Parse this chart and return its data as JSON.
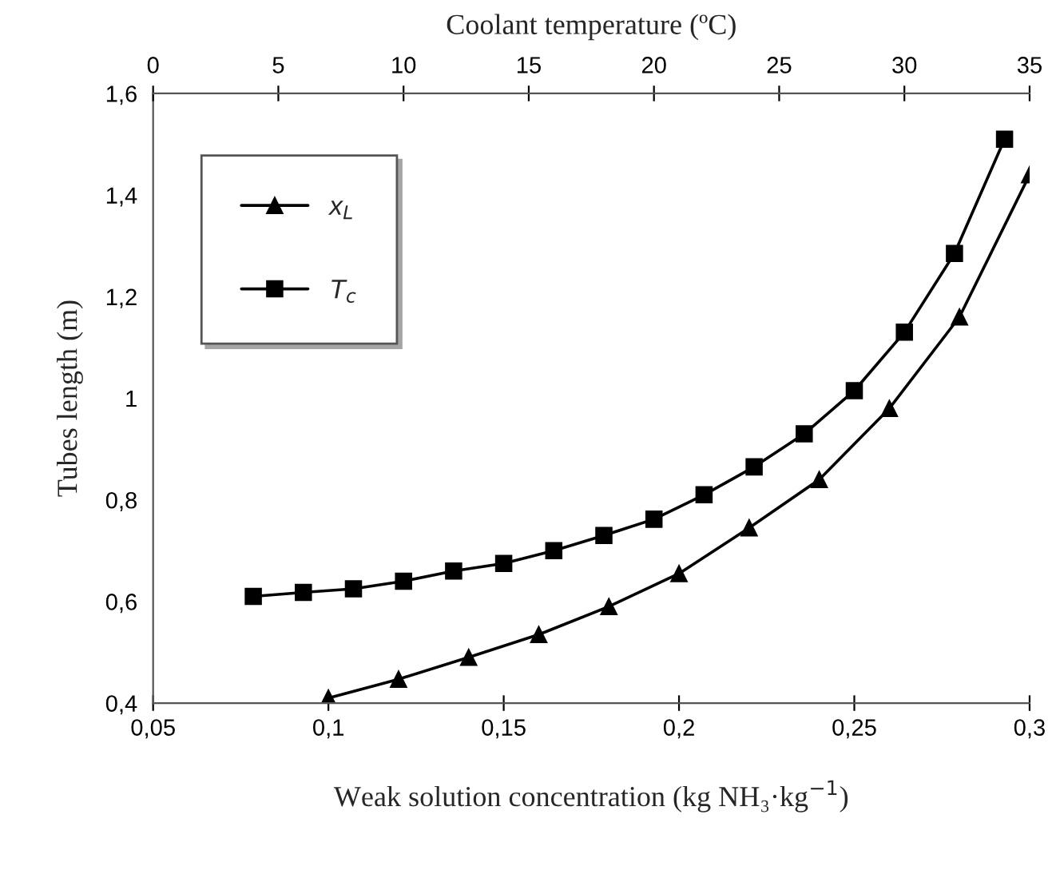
{
  "chart_data": {
    "type": "line",
    "xlabel": "Weak solution concentration (kg NH₃·kg$^{−1}$)",
    "x2label": "Coolant temperature (ºC)",
    "ylabel": "Tubes length (m)",
    "xlim": [
      0.05,
      0.3
    ],
    "xticks": [
      {
        "value": 0.05,
        "label": "0,05"
      },
      {
        "value": 0.1,
        "label": "0,1"
      },
      {
        "value": 0.15,
        "label": "0,15"
      },
      {
        "value": 0.2,
        "label": "0,2"
      },
      {
        "value": 0.25,
        "label": "0,25"
      },
      {
        "value": 0.3,
        "label": "0,3"
      }
    ],
    "x2lim": [
      0,
      35
    ],
    "x2ticks": [
      0,
      5,
      10,
      15,
      20,
      25,
      30,
      35
    ],
    "ylim": [
      0.4,
      1.6
    ],
    "yticks": [
      {
        "value": 0.4,
        "label": "0,4"
      },
      {
        "value": 0.6,
        "label": "0,6"
      },
      {
        "value": 0.8,
        "label": "0,8"
      },
      {
        "value": 1,
        "label": "1"
      },
      {
        "value": 1.2,
        "label": "1,2"
      },
      {
        "value": 1.4,
        "label": "1,4"
      },
      {
        "value": 1.6,
        "label": "1,6"
      }
    ],
    "grid": false,
    "legend": "top left",
    "line_style": "solid",
    "series": [
      {
        "name": "x$_{L}$",
        "color": "#000000",
        "marker": "triangle",
        "x": [
          0.1,
          0.12,
          0.14,
          0.16,
          0.18,
          0.2,
          0.22,
          0.24,
          0.26,
          0.28,
          0.3
        ],
        "values": [
          0.41,
          0.447,
          0.49,
          0.535,
          0.59,
          0.655,
          0.745,
          0.84,
          0.98,
          1.16,
          1.44
        ]
      },
      {
        "name": "T$_{c}$",
        "color": "#000000",
        "marker": "square",
        "axis": "x2",
        "x": [
          4,
          6,
          8,
          10,
          12,
          14,
          16,
          18,
          20,
          22,
          24,
          26,
          28,
          30,
          32,
          34
        ],
        "values": [
          0.61,
          0.618,
          0.625,
          0.64,
          0.66,
          0.675,
          0.7,
          0.73,
          0.762,
          0.81,
          0.865,
          0.93,
          1.015,
          1.13,
          1.285,
          1.51
        ]
      }
    ]
  }
}
